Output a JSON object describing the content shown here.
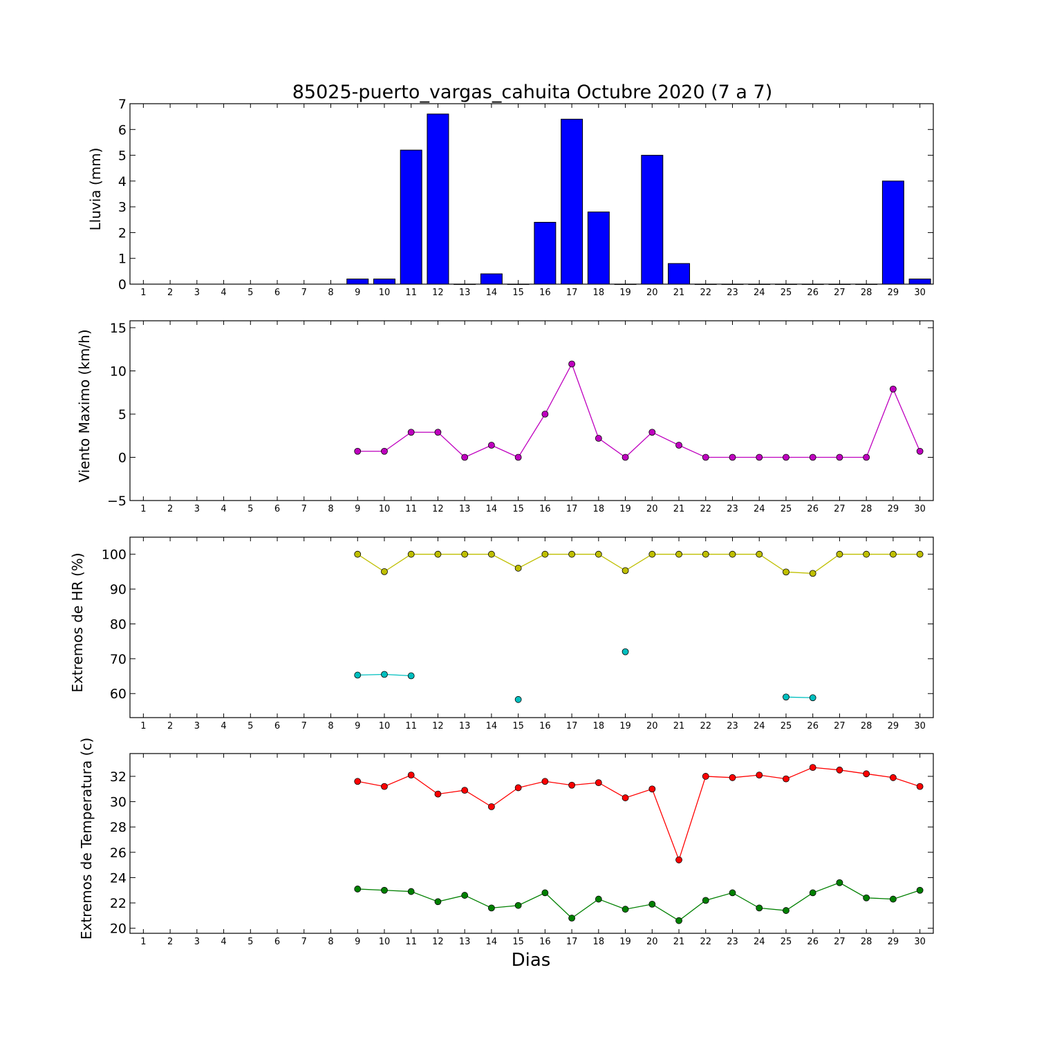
{
  "title": "85025-puerto_vargas_cahuita Octubre 2020  (7 a 7)",
  "xlabel": "Dias",
  "chart_data": [
    {
      "type": "bar",
      "name": "lluvia",
      "ylabel": "Lluvia (mm)",
      "ylim": [
        0,
        7
      ],
      "yticks": [
        0,
        1,
        2,
        3,
        4,
        5,
        6,
        7
      ],
      "color": "#0000ff",
      "x": [
        1,
        2,
        3,
        4,
        5,
        6,
        7,
        8,
        9,
        10,
        11,
        12,
        13,
        14,
        15,
        16,
        17,
        18,
        19,
        20,
        21,
        22,
        23,
        24,
        25,
        26,
        27,
        28,
        29,
        30
      ],
      "values": [
        null,
        null,
        null,
        null,
        null,
        null,
        null,
        null,
        0.2,
        0.2,
        5.2,
        6.6,
        0,
        0.4,
        0,
        2.4,
        6.4,
        2.8,
        0,
        5.0,
        0.8,
        0,
        0,
        0,
        0,
        0,
        0,
        0,
        4.0,
        0.2
      ]
    },
    {
      "type": "line",
      "name": "viento",
      "ylabel": "Viento Maximo (km/h)",
      "ylim": [
        -5,
        15.8
      ],
      "yticks": [
        -5,
        0,
        5,
        10,
        15
      ],
      "x": [
        1,
        2,
        3,
        4,
        5,
        6,
        7,
        8,
        9,
        10,
        11,
        12,
        13,
        14,
        15,
        16,
        17,
        18,
        19,
        20,
        21,
        22,
        23,
        24,
        25,
        26,
        27,
        28,
        29,
        30
      ],
      "series": [
        {
          "color": "#bf00bf",
          "values": [
            null,
            null,
            null,
            null,
            null,
            null,
            null,
            null,
            0.7,
            0.7,
            2.9,
            2.9,
            0,
            1.4,
            0,
            5.0,
            10.8,
            2.2,
            0,
            2.9,
            1.4,
            0,
            0,
            0,
            0,
            0,
            0,
            0,
            7.9,
            0.7
          ]
        }
      ]
    },
    {
      "type": "line",
      "name": "humedad",
      "ylabel": "Extremos de HR (%)",
      "ylim": [
        53.1,
        104.9
      ],
      "yticks": [
        60,
        70,
        80,
        90,
        100
      ],
      "x": [
        1,
        2,
        3,
        4,
        5,
        6,
        7,
        8,
        9,
        10,
        11,
        12,
        13,
        14,
        15,
        16,
        17,
        18,
        19,
        20,
        21,
        22,
        23,
        24,
        25,
        26,
        27,
        28,
        29,
        30
      ],
      "series": [
        {
          "color": "#bfbf00",
          "values": [
            null,
            null,
            null,
            null,
            null,
            null,
            null,
            null,
            100,
            95,
            100,
            100,
            100,
            100,
            96,
            100,
            100,
            100,
            95.3,
            100,
            100,
            100,
            100,
            100,
            94.9,
            94.5,
            100,
            100,
            100,
            100
          ]
        },
        {
          "color": "#00bfbf",
          "values": [
            null,
            null,
            null,
            null,
            null,
            null,
            null,
            null,
            65.3,
            65.5,
            65.1,
            null,
            null,
            null,
            58.3,
            null,
            null,
            null,
            72,
            null,
            null,
            null,
            null,
            null,
            59,
            58.8,
            null,
            null,
            null,
            null
          ]
        }
      ]
    },
    {
      "type": "line",
      "name": "temperatura",
      "ylabel": "Extremos de Temperatura (c)",
      "ylim": [
        19.6,
        33.8
      ],
      "yticks": [
        20,
        22,
        24,
        26,
        28,
        30,
        32
      ],
      "x": [
        1,
        2,
        3,
        4,
        5,
        6,
        7,
        8,
        9,
        10,
        11,
        12,
        13,
        14,
        15,
        16,
        17,
        18,
        19,
        20,
        21,
        22,
        23,
        24,
        25,
        26,
        27,
        28,
        29,
        30
      ],
      "series": [
        {
          "color": "#ff0000",
          "values": [
            null,
            null,
            null,
            null,
            null,
            null,
            null,
            null,
            31.6,
            31.2,
            32.1,
            30.6,
            30.9,
            29.6,
            31.1,
            31.6,
            31.3,
            31.5,
            30.3,
            31.0,
            25.4,
            32.0,
            31.9,
            32.1,
            31.8,
            32.7,
            32.5,
            32.2,
            31.9,
            31.2
          ]
        },
        {
          "color": "#008000",
          "values": [
            null,
            null,
            null,
            null,
            null,
            null,
            null,
            null,
            23.1,
            23.0,
            22.9,
            22.1,
            22.6,
            21.6,
            21.8,
            22.8,
            20.8,
            22.3,
            21.5,
            21.9,
            20.6,
            22.2,
            22.8,
            21.6,
            21.4,
            22.8,
            23.6,
            22.4,
            22.3,
            23.0
          ]
        }
      ]
    }
  ]
}
